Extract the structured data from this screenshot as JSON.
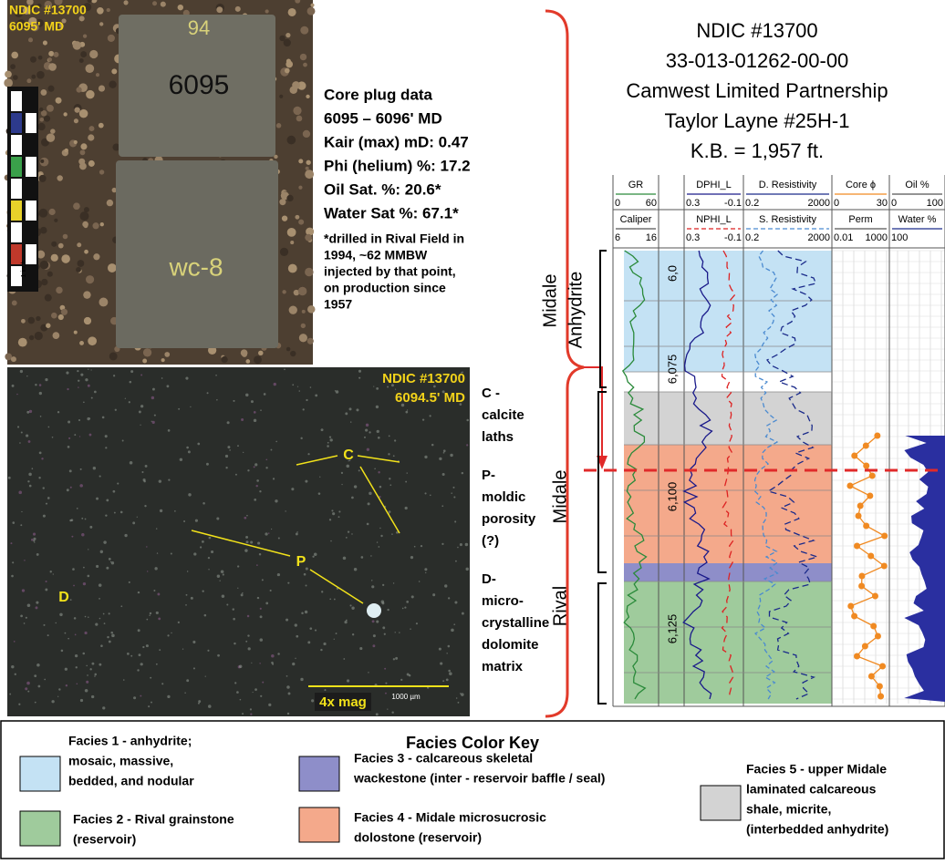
{
  "core_photo": {
    "well": "NDIC #13700",
    "depth": "6095' MD",
    "plug_top": "94",
    "plug_id": "6095",
    "plug_bottom": "wc-8",
    "scale": "1 inch"
  },
  "core_plug": {
    "lines": [
      "Core plug data",
      "6095 – 6096' MD",
      "Kair (max) mD: 0.47",
      "Phi (helium) %: 17.2",
      "Oil Sat. %: 20.6*",
      "Water Sat %: 67.1*"
    ],
    "note": [
      "*drilled in Rival Field in",
      "1994, ~62 MMBW",
      "injected by that point,",
      "on production since",
      "1957"
    ]
  },
  "thin_section": {
    "well": "NDIC #13700",
    "depth": "6094.5' MD",
    "labels": [
      "C",
      "P",
      "D"
    ],
    "magnification": "4x mag",
    "scale_bar": "1000 µm"
  },
  "annotations": [
    [
      "C -",
      "calcite",
      "laths"
    ],
    [
      "P-",
      "moldic",
      "porosity",
      "(?)"
    ],
    [
      "D-",
      "micro-",
      "crystalline",
      "dolomite",
      "matrix"
    ]
  ],
  "well_header": [
    "NDIC #13700",
    "33-013-01262-00-00",
    "Camwest Limited Partnership",
    "Taylor Layne #25H-1",
    "K.B. = 1,957 ft."
  ],
  "log_tracks": [
    {
      "name": "GR",
      "min": "0",
      "max": "60"
    },
    {
      "name": "Caliper",
      "min": "6",
      "max": "16"
    },
    {
      "name": "DPHI_L",
      "min": "0.3",
      "max": "-0.1"
    },
    {
      "name": "NPHI_L",
      "min": "0.3",
      "max": "-0.1"
    },
    {
      "name": "D. Resistivity",
      "min": "0.2",
      "max": "2000"
    },
    {
      "name": "S. Resistivity",
      "min": "0.2",
      "max": "2000"
    },
    {
      "name": "Core ϕ",
      "min": "0",
      "max": "30"
    },
    {
      "name": "Perm",
      "min": "0.01",
      "max": "1000"
    },
    {
      "name": "Oil %",
      "min": "0",
      "max": "100"
    },
    {
      "name": "Water %",
      "min": "100"
    }
  ],
  "depths": [
    "6,0",
    "6,075",
    "6,100",
    "6,125"
  ],
  "formations": [
    "Midale",
    "Anhydrite",
    "Midale",
    "Rival"
  ],
  "legend": {
    "title": "Facies Color Key",
    "items": [
      {
        "lines": [
          "Facies 1 - anhydrite;",
          "mosaic, massive,",
          "bedded, and nodular"
        ],
        "color": "#c4e2f4"
      },
      {
        "lines": [
          "Facies 2 - Rival grainstone",
          "(reservoir)"
        ],
        "color": "#9fcb9c"
      },
      {
        "lines": [
          "Facies 3 - calcareous skeletal",
          "wackestone (inter - reservoir baffle / seal)"
        ],
        "color": "#8e8ec9"
      },
      {
        "lines": [
          "Facies 4 - Midale microsucrosic",
          "dolostone (reservoir)"
        ],
        "color": "#f4a98b"
      },
      {
        "lines": [
          "Facies 5 - upper Midale",
          "laminated calcareous",
          "shale, micrite,",
          "(interbedded anhydrite)"
        ],
        "color": "#d3d3d3"
      }
    ]
  }
}
